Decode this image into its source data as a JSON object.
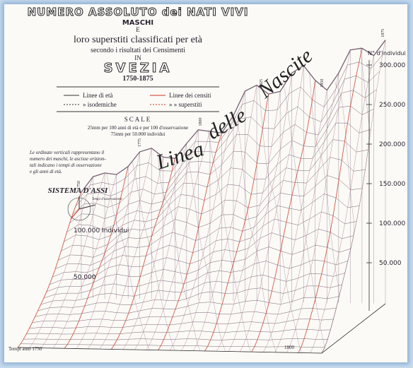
{
  "header": {
    "title": "NUMERO ASSOLUTO dei NATI VIVI",
    "subject": "MASCHI",
    "conjunction": "E",
    "line1": "loro superstiti classificati per età",
    "line2": "secondo i risultati dei Censimenti",
    "preposition": "IN",
    "country": "SVEZIA",
    "period": "1750-1875"
  },
  "legend": {
    "items": [
      "Linee di età",
      "» isodemiche",
      "Linee dei censiti",
      "» » superstiti"
    ]
  },
  "scale": {
    "title": "SCALE",
    "line1": "25mm per 100 anni di età e per 100 d'osservazione",
    "line2": "75mm per 50.000 individui"
  },
  "note": [
    "Le ordinate verticali rappresentano il",
    "numero dei maschi, le ascisse orizzon-",
    "tali indicano i tempi di osservazione",
    "e gli anni di età."
  ],
  "axes_system": {
    "title": "SISTEMA D'ASSI",
    "caption": "Tempi d'osservazione"
  },
  "birth_line_label": [
    "Linea",
    "delle",
    "Nascite"
  ],
  "right_axis": {
    "title": "N° d'individui",
    "labels": [
      "300.000",
      "250.000",
      "200.000",
      "150.000",
      "100.000",
      "50.000"
    ]
  },
  "left_axis": {
    "labels": [
      "100.000 Individui",
      "50.000"
    ]
  },
  "years": {
    "top": [
      "1750",
      "1775",
      "1800",
      "1825",
      "1850",
      "1875"
    ],
    "bottom": [
      "Tempi anni 1750",
      "1800"
    ]
  }
}
